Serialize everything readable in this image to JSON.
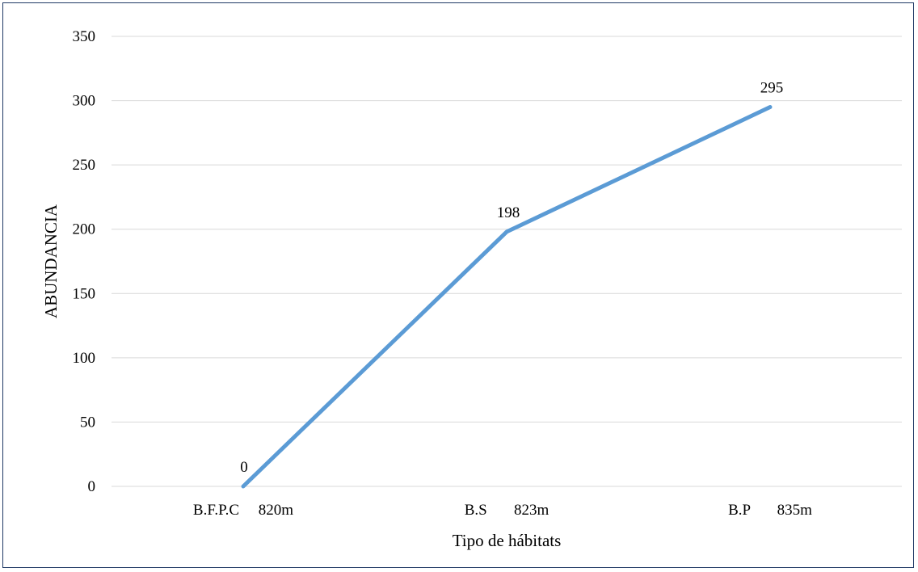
{
  "chart_data": {
    "type": "line",
    "categories": [
      "B.F.P.C     820m",
      "B.S       823m",
      "B.P       835m"
    ],
    "values": [
      0,
      198,
      295
    ],
    "data_labels": [
      "0",
      "198",
      "295"
    ],
    "xlabel": "Tipo de hábitats",
    "ylabel": "ABUNDANCIA",
    "ylim": [
      0,
      350
    ],
    "yticks": [
      0,
      50,
      100,
      150,
      200,
      250,
      300,
      350
    ],
    "ytick_labels": [
      "0",
      "50",
      "100",
      "150",
      "200",
      "250",
      "300",
      "350"
    ],
    "grid": "horizontal",
    "series_color": "#5b9bd5",
    "grid_color": "#d9d9d9",
    "legend": "none"
  }
}
